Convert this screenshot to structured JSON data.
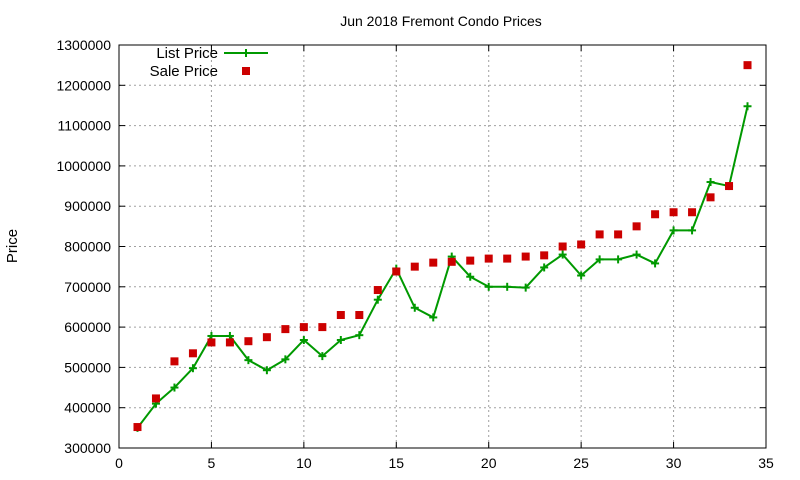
{
  "chart_data": {
    "type": "line",
    "title": "Jun 2018 Fremont Condo Prices",
    "xlabel": "",
    "ylabel": "Price",
    "xlim": [
      0,
      35
    ],
    "ylim": [
      300000,
      1300000
    ],
    "x_ticks": [
      0,
      5,
      10,
      15,
      20,
      25,
      30,
      35
    ],
    "y_ticks": [
      300000,
      400000,
      500000,
      600000,
      700000,
      800000,
      900000,
      1000000,
      1100000,
      1200000,
      1300000
    ],
    "grid": true,
    "legend_position": "top-left",
    "x": [
      1,
      2,
      3,
      4,
      5,
      6,
      7,
      8,
      9,
      10,
      11,
      12,
      13,
      14,
      15,
      16,
      17,
      18,
      19,
      20,
      21,
      22,
      23,
      24,
      25,
      26,
      27,
      28,
      29,
      30,
      31,
      32,
      33,
      34
    ],
    "series": [
      {
        "name": "List Price",
        "style": "line-points",
        "color": "#009900",
        "values": [
          350000,
          410000,
          450000,
          498000,
          578000,
          578000,
          518000,
          493000,
          520000,
          568000,
          528000,
          568000,
          580000,
          668000,
          745000,
          648000,
          624000,
          775000,
          725000,
          700000,
          700000,
          698000,
          748000,
          780000,
          728000,
          768000,
          768000,
          780000,
          758000,
          840000,
          840000,
          960000,
          950000,
          1148000
        ]
      },
      {
        "name": "Sale Price",
        "style": "points",
        "color": "#cc0000",
        "values": [
          352000,
          423000,
          515000,
          535000,
          562000,
          562000,
          565000,
          575000,
          595000,
          600000,
          600000,
          630000,
          630000,
          692000,
          738000,
          750000,
          760000,
          762000,
          765000,
          770000,
          770000,
          775000,
          778000,
          800000,
          805000,
          830000,
          830000,
          850000,
          880000,
          885000,
          885000,
          922000,
          950000,
          1250000
        ]
      }
    ]
  }
}
